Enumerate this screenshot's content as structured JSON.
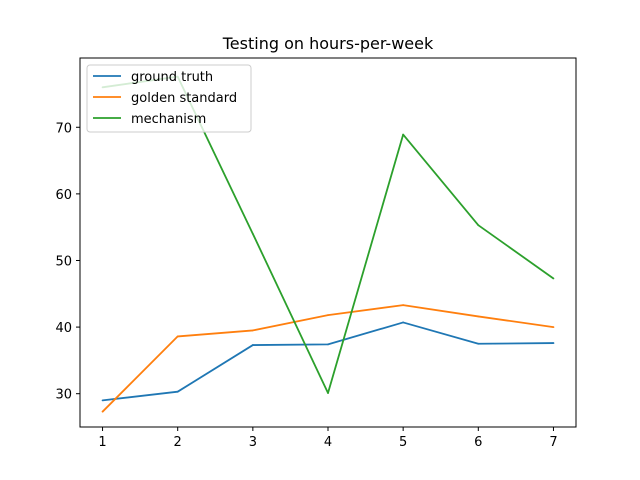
{
  "chart_data": {
    "type": "line",
    "title": "Testing on hours-per-week",
    "xlabel": "",
    "ylabel": "",
    "x": [
      1,
      2,
      3,
      4,
      5,
      6,
      7
    ],
    "xticks": [
      1,
      2,
      3,
      4,
      5,
      6,
      7
    ],
    "yticks": [
      30,
      40,
      50,
      60,
      70
    ],
    "xlim": [
      0.7,
      7.3
    ],
    "ylim": [
      25.0,
      80.4
    ],
    "grid": false,
    "legend_position": "upper-left",
    "series": [
      {
        "name": "ground truth",
        "color": "#1f77b4",
        "values": [
          29.0,
          30.3,
          37.3,
          37.4,
          40.7,
          37.5,
          37.6
        ]
      },
      {
        "name": "golden standard",
        "color": "#ff7f0e",
        "values": [
          27.3,
          38.6,
          39.5,
          41.8,
          43.3,
          41.6,
          40.0
        ]
      },
      {
        "name": "mechanism",
        "color": "#2ca02c",
        "values": [
          76.0,
          77.6,
          54.0,
          30.1,
          68.9,
          55.3,
          47.3
        ]
      }
    ]
  }
}
